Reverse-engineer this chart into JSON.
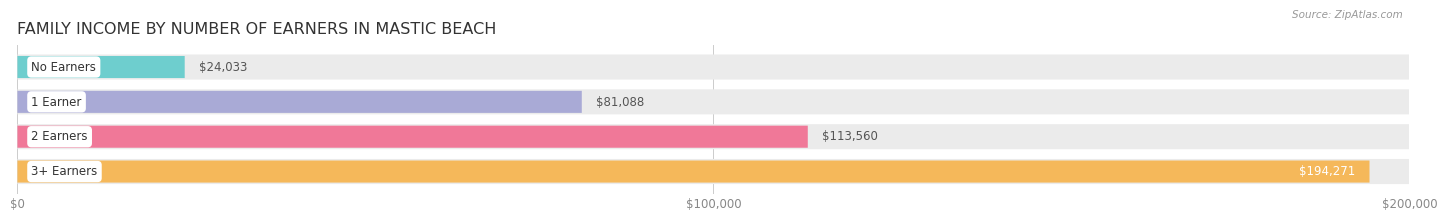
{
  "title": "FAMILY INCOME BY NUMBER OF EARNERS IN MASTIC BEACH",
  "source": "Source: ZipAtlas.com",
  "categories": [
    "No Earners",
    "1 Earner",
    "2 Earners",
    "3+ Earners"
  ],
  "values": [
    24033,
    81088,
    113560,
    194271
  ],
  "labels": [
    "$24,033",
    "$81,088",
    "$113,560",
    "$194,271"
  ],
  "bar_colors": [
    "#6ecece",
    "#a9aad6",
    "#f07898",
    "#f5b85a"
  ],
  "bar_bg_color": "#ebebeb",
  "xlim": [
    0,
    200000
  ],
  "xticks": [
    0,
    100000,
    200000
  ],
  "xtick_labels": [
    "$0",
    "$100,000",
    "$200,000"
  ],
  "title_fontsize": 11.5,
  "label_inside_color": "#ffffff",
  "label_outside_color": "#555555",
  "background_color": "#ffffff",
  "fig_width": 14.06,
  "fig_height": 2.33,
  "bar_height": 0.72,
  "bar_gap": 0.28
}
